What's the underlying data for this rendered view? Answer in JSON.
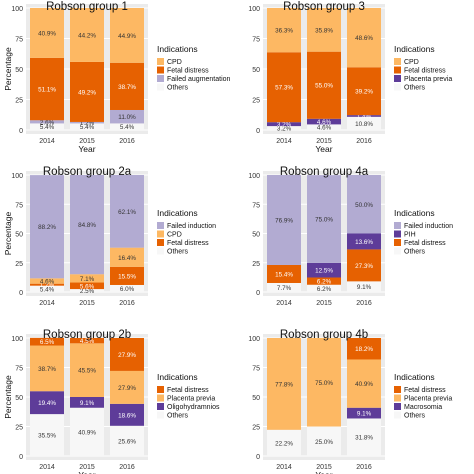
{
  "colors": {
    "cpd": "#fdb863",
    "fetal_distress": "#e66101",
    "purple_dark": "#5e3c99",
    "purple_light": "#b2abd2",
    "others": "#f7f7f7",
    "panel_bg": "#ebebeb",
    "grid": "#ffffff"
  },
  "chart_data": [
    {
      "type": "bar",
      "stacked": true,
      "title": "Robson group 1",
      "xlabel": "Year",
      "ylabel": "Percentage",
      "ylim": [
        0,
        100
      ],
      "yticks": [
        0,
        25,
        50,
        75,
        100
      ],
      "categories": [
        "2014",
        "2015",
        "2016"
      ],
      "legend_title": "Indications",
      "series": [
        {
          "name": "Others",
          "color": "#f7f7f7",
          "values": [
            5.4,
            5.4,
            5.4
          ]
        },
        {
          "name": "Failed augmentation",
          "color": "#b2abd2",
          "values": [
            2.6,
            1.2,
            11.0
          ]
        },
        {
          "name": "Fetal distress",
          "color": "#e66101",
          "values": [
            51.1,
            49.2,
            38.7
          ]
        },
        {
          "name": "CPD",
          "color": "#fdb863",
          "values": [
            40.9,
            44.2,
            44.9
          ]
        }
      ],
      "labels": [
        [
          "5.4%",
          "2.6%",
          "51.1%",
          "40.9%"
        ],
        [
          "5.4%",
          "1.2%",
          "49.2%",
          "44.2%"
        ],
        [
          "5.4%",
          "11.0%",
          "38.7%",
          "44.9%"
        ]
      ]
    },
    {
      "type": "bar",
      "stacked": true,
      "title": "Robson group 3",
      "xlabel": "Year",
      "ylabel": "",
      "ylim": [
        0,
        100
      ],
      "yticks": [
        0,
        25,
        50,
        75,
        100
      ],
      "categories": [
        "2014",
        "2015",
        "2016"
      ],
      "legend_title": "Indications",
      "series": [
        {
          "name": "Others",
          "color": "#f7f7f7",
          "values": [
            3.2,
            4.6,
            10.8
          ]
        },
        {
          "name": "Placenta previa",
          "color": "#5e3c99",
          "values": [
            3.2,
            4.6,
            1.4
          ]
        },
        {
          "name": "Fetal distress",
          "color": "#e66101",
          "values": [
            57.3,
            55.0,
            39.2
          ]
        },
        {
          "name": "CPD",
          "color": "#fdb863",
          "values": [
            36.3,
            35.8,
            48.6
          ]
        }
      ],
      "labels": [
        [
          "3.2%",
          "3.2%",
          "57.3%",
          "36.3%"
        ],
        [
          "4.6%",
          "4.6%",
          "55.0%",
          "35.8%"
        ],
        [
          "10.8%",
          "1.4%",
          "39.2%",
          "48.6%"
        ]
      ]
    },
    {
      "type": "bar",
      "stacked": true,
      "title": "Robson group 2a",
      "xlabel": "",
      "ylabel": "Percentage",
      "ylim": [
        0,
        100
      ],
      "yticks": [
        0,
        25,
        50,
        75,
        100
      ],
      "categories": [
        "2014",
        "2015",
        "2016"
      ],
      "legend_title": "Indications",
      "series": [
        {
          "name": "Others",
          "color": "#f7f7f7",
          "values": [
            5.4,
            2.5,
            6.0
          ]
        },
        {
          "name": "Fetal distress",
          "color": "#e66101",
          "values": [
            1.7,
            5.6,
            15.5
          ]
        },
        {
          "name": "CPD",
          "color": "#fdb863",
          "values": [
            4.6,
            7.1,
            16.4
          ]
        },
        {
          "name": "Failed induction",
          "color": "#b2abd2",
          "values": [
            88.2,
            84.8,
            62.1
          ]
        }
      ],
      "labels": [
        [
          "5.4%",
          "1.7%",
          "4.6%",
          "88.2%"
        ],
        [
          "2.5%",
          "5.6%",
          "7.1%",
          "84.8%"
        ],
        [
          "6.0%",
          "15.5%",
          "16.4%",
          "62.1%"
        ]
      ]
    },
    {
      "type": "bar",
      "stacked": true,
      "title": "Robson group 4a",
      "xlabel": "",
      "ylabel": "",
      "ylim": [
        0,
        100
      ],
      "yticks": [
        0,
        25,
        50,
        75,
        100
      ],
      "categories": [
        "2014",
        "2015",
        "2016"
      ],
      "legend_title": "Indications",
      "series": [
        {
          "name": "Others",
          "color": "#f7f7f7",
          "values": [
            7.7,
            6.2,
            9.1
          ]
        },
        {
          "name": "Fetal distress",
          "color": "#e66101",
          "values": [
            15.4,
            6.2,
            27.3
          ]
        },
        {
          "name": "PIH",
          "color": "#5e3c99",
          "values": [
            0,
            12.5,
            13.6
          ]
        },
        {
          "name": "Failed induction",
          "color": "#b2abd2",
          "values": [
            76.9,
            75.0,
            50.0
          ]
        }
      ],
      "labels": [
        [
          "7.7%",
          "15.4%",
          "",
          "76.9%"
        ],
        [
          "6.2%",
          "6.2%",
          "12.5%",
          "75.0%"
        ],
        [
          "9.1%",
          "27.3%",
          "13.6%",
          "50.0%"
        ]
      ]
    },
    {
      "type": "bar",
      "stacked": true,
      "title": "Robson group 2b",
      "xlabel": "Year",
      "ylabel": "Percentage",
      "ylim": [
        0,
        100
      ],
      "yticks": [
        0,
        25,
        50,
        75,
        100
      ],
      "categories": [
        "2014",
        "2015",
        "2016"
      ],
      "legend_title": "Indications",
      "series": [
        {
          "name": "Others",
          "color": "#f7f7f7",
          "values": [
            35.5,
            40.9,
            25.6
          ]
        },
        {
          "name": "Oligohydramnios",
          "color": "#5e3c99",
          "values": [
            19.4,
            9.1,
            18.6
          ]
        },
        {
          "name": "Placenta previa",
          "color": "#fdb863",
          "values": [
            38.7,
            45.5,
            27.9
          ]
        },
        {
          "name": "Fetal distress",
          "color": "#e66101",
          "values": [
            6.5,
            4.5,
            27.9
          ]
        }
      ],
      "labels": [
        [
          "35.5%",
          "19.4%",
          "38.7%",
          "6.5%"
        ],
        [
          "40.9%",
          "9.1%",
          "45.5%",
          "4.5%"
        ],
        [
          "25.6%",
          "18.6%",
          "27.9%",
          "27.9%"
        ]
      ]
    },
    {
      "type": "bar",
      "stacked": true,
      "title": "Robson group 4b",
      "xlabel": "Year",
      "ylabel": "",
      "ylim": [
        0,
        100
      ],
      "yticks": [
        0,
        25,
        50,
        75,
        100
      ],
      "categories": [
        "2014",
        "2015",
        "2016"
      ],
      "legend_title": "Indications",
      "series": [
        {
          "name": "Others",
          "color": "#f7f7f7",
          "values": [
            22.2,
            25.0,
            31.8
          ]
        },
        {
          "name": "Macrosomia",
          "color": "#5e3c99",
          "values": [
            0,
            0,
            9.1
          ]
        },
        {
          "name": "Placenta previa",
          "color": "#fdb863",
          "values": [
            77.8,
            75.0,
            40.9
          ]
        },
        {
          "name": "Fetal distress",
          "color": "#e66101",
          "values": [
            0,
            0,
            18.2
          ]
        }
      ],
      "labels": [
        [
          "22.2%",
          "",
          "77.8%",
          ""
        ],
        [
          "25.0%",
          "",
          "75.0%",
          ""
        ],
        [
          "31.8%",
          "9.1%",
          "40.9%",
          "18.2%"
        ]
      ]
    }
  ],
  "legends": [
    [
      "CPD",
      "Fetal distress",
      "Failed augmentation",
      "Others"
    ],
    [
      "CPD",
      "Fetal distress",
      "Placenta previa",
      "Others"
    ],
    [
      "Failed induction",
      "CPD",
      "Fetal distress",
      "Others"
    ],
    [
      "Failed induction",
      "PIH",
      "Fetal distress",
      "Others"
    ],
    [
      "Fetal distress",
      "Placenta previa",
      "Oligohydramnios",
      "Others"
    ],
    [
      "Fetal distress",
      "Placenta previa",
      "Macrosomia",
      "Others"
    ]
  ]
}
